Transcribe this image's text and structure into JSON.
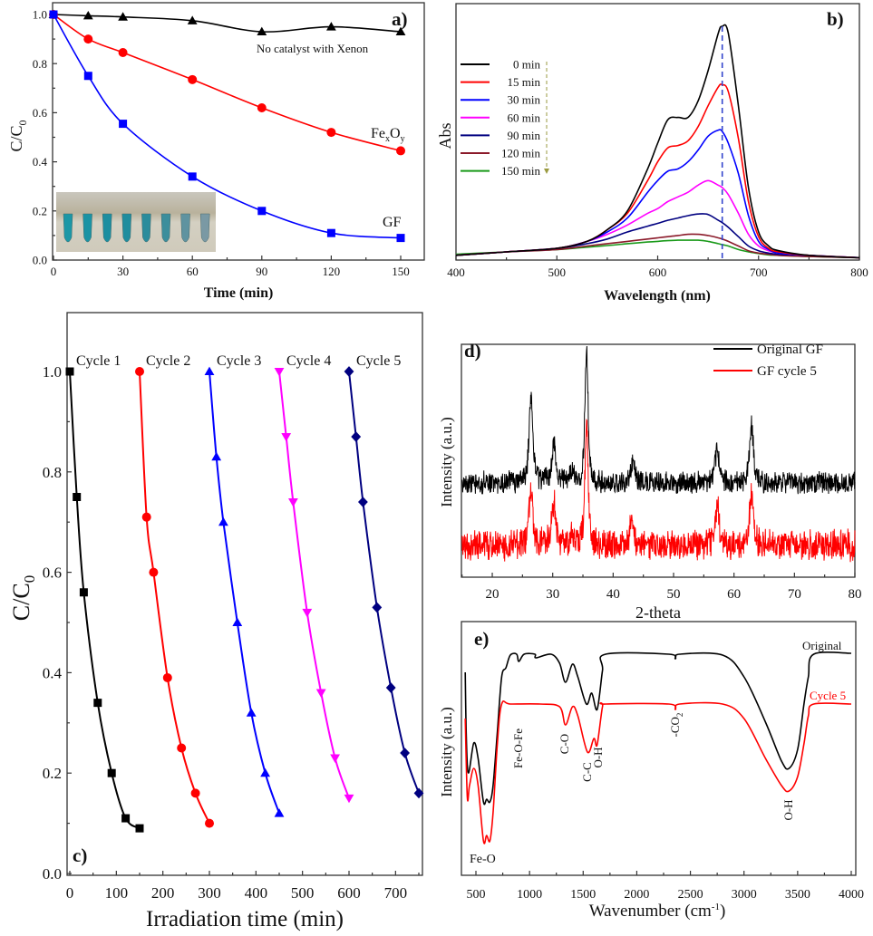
{
  "chart_data": [
    {
      "panel_label": "a)",
      "type": "line",
      "xlabel": "Time (min)",
      "ylabel": {
        "main": "C/C",
        "sub": "0"
      },
      "xlim": [
        0,
        150
      ],
      "ylim": [
        0,
        1.05
      ],
      "xticks": [
        0,
        30,
        60,
        90,
        120,
        150
      ],
      "yticks": [
        0.0,
        0.2,
        0.4,
        0.6,
        0.8,
        1.0
      ],
      "grid": false,
      "x": [
        0,
        15,
        30,
        60,
        90,
        120,
        150
      ],
      "series": [
        {
          "name": "No catalyst with Xenon",
          "color": "#000000",
          "marker": "triangle-up",
          "values": [
            1.0,
            0.995,
            0.99,
            0.975,
            0.93,
            0.95,
            0.93
          ]
        },
        {
          "label": {
            "b1": "Fe",
            "s1": "x",
            "b2": "O",
            "s2": "y"
          },
          "color": "#ff0000",
          "marker": "circle",
          "values": [
            1.0,
            0.9,
            0.845,
            0.735,
            0.62,
            0.52,
            0.445
          ]
        },
        {
          "name": "GF",
          "color": "#0000ff",
          "marker": "square",
          "values": [
            1.0,
            0.75,
            0.555,
            0.34,
            0.2,
            0.11,
            0.09
          ]
        }
      ]
    },
    {
      "panel_label": "b)",
      "type": "line",
      "xlabel": "Wavelength (nm)",
      "ylabel": "Abs",
      "xlim": [
        400,
        800
      ],
      "xticks": [
        400,
        500,
        600,
        700,
        800
      ],
      "ylim": [
        0,
        1.1
      ],
      "grid": false,
      "legend_position": "top-left",
      "reference_line_x": 664,
      "reference_line_color": "#3344cc",
      "x": [
        400,
        450,
        500,
        530,
        550,
        570,
        590,
        600,
        610,
        620,
        630,
        640,
        650,
        660,
        664,
        670,
        680,
        690,
        700,
        710,
        720,
        750,
        800
      ],
      "series": [
        {
          "name": "0 min",
          "color": "#000000",
          "values": [
            0.02,
            0.035,
            0.05,
            0.08,
            0.13,
            0.21,
            0.39,
            0.5,
            0.6,
            0.61,
            0.61,
            0.68,
            0.81,
            0.97,
            1.0,
            0.97,
            0.66,
            0.31,
            0.12,
            0.06,
            0.04,
            0.02,
            0.01
          ]
        },
        {
          "name": "15 min",
          "color": "#ff0000",
          "values": [
            0.02,
            0.035,
            0.05,
            0.08,
            0.13,
            0.2,
            0.34,
            0.42,
            0.48,
            0.49,
            0.51,
            0.57,
            0.66,
            0.74,
            0.75,
            0.72,
            0.52,
            0.25,
            0.1,
            0.05,
            0.035,
            0.02,
            0.01
          ]
        },
        {
          "name": "30 min",
          "color": "#0000ff",
          "values": [
            0.02,
            0.035,
            0.05,
            0.08,
            0.12,
            0.18,
            0.29,
            0.34,
            0.38,
            0.39,
            0.42,
            0.47,
            0.53,
            0.556,
            0.55,
            0.5,
            0.37,
            0.19,
            0.08,
            0.045,
            0.03,
            0.02,
            0.01
          ]
        },
        {
          "name": "60 min",
          "color": "#ff00ff",
          "values": [
            0.02,
            0.035,
            0.05,
            0.08,
            0.11,
            0.15,
            0.2,
            0.22,
            0.25,
            0.27,
            0.29,
            0.32,
            0.34,
            0.32,
            0.31,
            0.28,
            0.2,
            0.11,
            0.06,
            0.04,
            0.03,
            0.02,
            0.01
          ]
        },
        {
          "name": "90 min",
          "color": "#000080",
          "values": [
            0.02,
            0.035,
            0.05,
            0.07,
            0.09,
            0.12,
            0.145,
            0.157,
            0.17,
            0.18,
            0.19,
            0.197,
            0.195,
            0.17,
            0.16,
            0.14,
            0.1,
            0.06,
            0.04,
            0.03,
            0.025,
            0.02,
            0.01
          ]
        },
        {
          "name": "120 min",
          "color": "#8b1a2a",
          "values": [
            0.02,
            0.035,
            0.045,
            0.06,
            0.07,
            0.08,
            0.09,
            0.095,
            0.1,
            0.105,
            0.11,
            0.11,
            0.105,
            0.095,
            0.09,
            0.08,
            0.06,
            0.04,
            0.03,
            0.025,
            0.02,
            0.015,
            0.01
          ]
        },
        {
          "name": "150 min",
          "color": "#1a9a1a",
          "values": [
            0.025,
            0.035,
            0.045,
            0.055,
            0.062,
            0.07,
            0.077,
            0.08,
            0.083,
            0.085,
            0.085,
            0.085,
            0.08,
            0.07,
            0.066,
            0.06,
            0.045,
            0.035,
            0.028,
            0.022,
            0.02,
            0.015,
            0.01
          ]
        }
      ]
    },
    {
      "panel_label": "c)",
      "type": "line",
      "xlabel": "Irradiation time (min)",
      "ylabel": {
        "main": "C/C",
        "sub": "0"
      },
      "xlim": [
        0,
        755
      ],
      "ylim": [
        0,
        1.12
      ],
      "xticks": [
        0,
        100,
        200,
        300,
        400,
        500,
        600,
        700
      ],
      "yticks": [
        0.0,
        0.2,
        0.4,
        0.6,
        0.8,
        1.0
      ],
      "grid": false,
      "series": [
        {
          "name": "Cycle 1",
          "color": "#000000",
          "marker": "square",
          "x": [
            0,
            15,
            30,
            60,
            90,
            120,
            150
          ],
          "values": [
            1.0,
            0.75,
            0.56,
            0.34,
            0.2,
            0.11,
            0.09
          ]
        },
        {
          "name": "Cycle 2",
          "color": "#ff0000",
          "marker": "circle",
          "x": [
            150,
            165,
            180,
            210,
            240,
            270,
            300
          ],
          "values": [
            1.0,
            0.71,
            0.6,
            0.39,
            0.25,
            0.16,
            0.1
          ]
        },
        {
          "name": "Cycle 3",
          "color": "#0000ff",
          "marker": "triangle-up",
          "x": [
            300,
            315,
            330,
            360,
            390,
            420,
            450
          ],
          "values": [
            1.0,
            0.83,
            0.7,
            0.5,
            0.32,
            0.2,
            0.12
          ]
        },
        {
          "name": "Cycle 4",
          "color": "#ff00ff",
          "marker": "triangle-down",
          "x": [
            450,
            465,
            480,
            510,
            540,
            570,
            600
          ],
          "values": [
            1.0,
            0.87,
            0.74,
            0.52,
            0.36,
            0.23,
            0.15
          ]
        },
        {
          "name": "Cycle 5",
          "color": "#000080",
          "marker": "diamond",
          "x": [
            600,
            615,
            630,
            660,
            690,
            720,
            750
          ],
          "values": [
            1.0,
            0.87,
            0.74,
            0.53,
            0.37,
            0.24,
            0.16
          ]
        }
      ]
    },
    {
      "panel_label": "d)",
      "type": "line",
      "xlabel": "2-theta",
      "ylabel": "Intensity (a.u.)",
      "xlim": [
        15,
        80
      ],
      "xticks": [
        20,
        30,
        40,
        50,
        60,
        70,
        80
      ],
      "ylim": [
        0,
        257
      ],
      "grid": false,
      "legend_position": "top-right",
      "series": [
        {
          "name": "Original GF",
          "color": "#000000",
          "baseline": 104,
          "noise": 14,
          "peaks": [
            {
              "two_theta": 26.4,
              "height": 90
            },
            {
              "two_theta": 30.2,
              "height": 43
            },
            {
              "two_theta": 33.2,
              "height": 14
            },
            {
              "two_theta": 35.6,
              "height": 145
            },
            {
              "two_theta": 43.3,
              "height": 26
            },
            {
              "two_theta": 57.2,
              "height": 38
            },
            {
              "two_theta": 62.9,
              "height": 63
            }
          ]
        },
        {
          "name": "GF cycle 5",
          "color": "#ff0000",
          "baseline": 35,
          "noise": 19,
          "peaks": [
            {
              "two_theta": 26.4,
              "height": 62
            },
            {
              "two_theta": 30.2,
              "height": 50
            },
            {
              "two_theta": 33.2,
              "height": 14
            },
            {
              "two_theta": 35.6,
              "height": 140
            },
            {
              "two_theta": 43.1,
              "height": 29
            },
            {
              "two_theta": 57.2,
              "height": 44
            },
            {
              "two_theta": 62.9,
              "height": 57
            }
          ]
        }
      ]
    },
    {
      "panel_label": "e)",
      "type": "line",
      "xlabel": {
        "main": "Wavenumber (cm",
        "sup": "-1",
        "end": ")"
      },
      "ylabel": "Intensity (a.u.)",
      "xlim": [
        365,
        4040
      ],
      "xticks": [
        500,
        1000,
        1500,
        2000,
        2500,
        3000,
        3500,
        4000
      ],
      "ylim": [
        0,
        280
      ],
      "grid": false,
      "series": [
        {
          "name": "Original",
          "color": "#000000",
          "x": [
            400,
            410,
            430,
            480,
            520,
            570,
            600,
            630,
            660,
            700,
            740,
            780,
            820,
            880,
            900,
            950,
            1050,
            1060,
            1200,
            1280,
            1335,
            1400,
            1450,
            1530,
            1580,
            1630,
            1680,
            1710,
            2300,
            2360,
            2400,
            2800,
            3000,
            3200,
            3350,
            3420,
            3500,
            3560,
            3600,
            3650,
            4000
          ],
          "values": [
            224,
            153,
            113,
            146,
            129,
            81,
            84,
            81,
            99,
            159,
            219,
            229,
            243,
            244,
            236,
            244,
            244,
            240,
            244,
            234,
            213,
            233,
            219,
            189,
            201,
            183,
            226,
            244,
            244,
            239,
            244,
            243,
            219,
            169,
            126,
            118,
            139,
            190,
            219,
            244,
            245
          ]
        },
        {
          "name": "Cycle 5",
          "color": "#ff0000",
          "x": [
            400,
            420,
            440,
            480,
            520,
            570,
            600,
            630,
            660,
            700,
            740,
            820,
            1100,
            1280,
            1335,
            1400,
            1450,
            1540,
            1600,
            1630,
            1680,
            1710,
            2300,
            2360,
            2400,
            2800,
            3000,
            3200,
            3350,
            3420,
            3500,
            3560,
            3600,
            3650,
            4000
          ],
          "values": [
            173,
            86,
            99,
            118,
            99,
            38,
            44,
            38,
            69,
            146,
            189,
            189,
            189,
            186,
            166,
            186,
            176,
            136,
            151,
            144,
            186,
            189,
            189,
            183,
            189,
            189,
            173,
            129,
            99,
            93,
            109,
            146,
            176,
            189,
            189
          ]
        }
      ],
      "annotations": {
        "fe_o": "Fe-O",
        "fe_o_fe": "Fe-O-Fe",
        "c_o": "C-O",
        "c_c": "C-C",
        "o_h_1": "O-H",
        "co2": {
          "main": "-CO",
          "sub": "2"
        },
        "o_h_2": "O-H"
      }
    }
  ]
}
